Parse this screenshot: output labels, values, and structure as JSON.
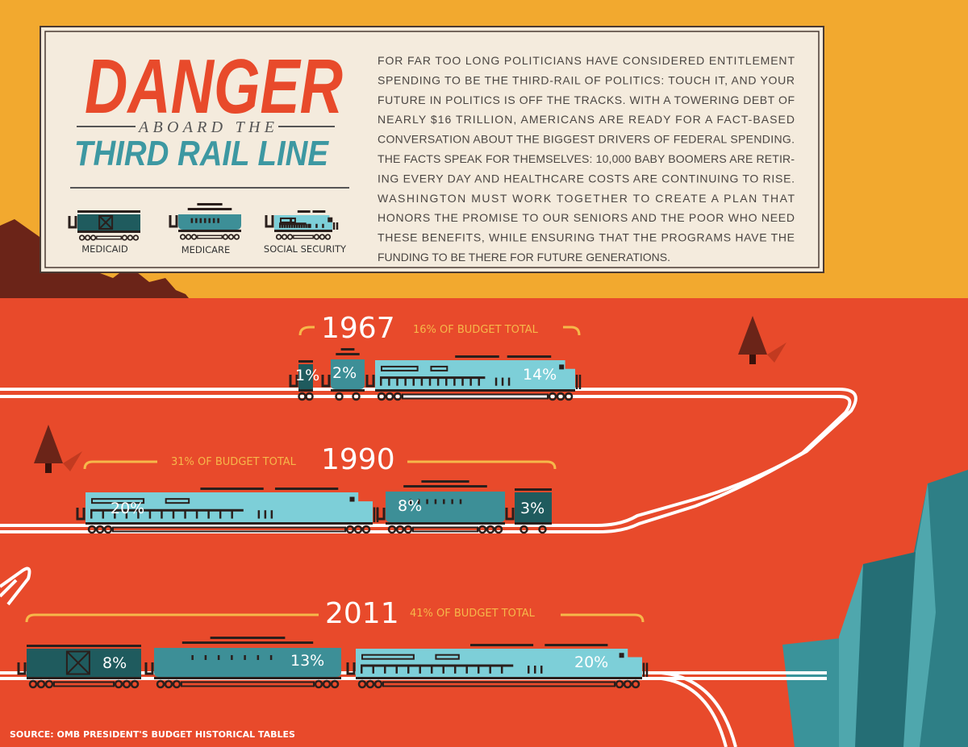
{
  "colors": {
    "sky": "#F2A92F",
    "ground": "#E84A2B",
    "panel": "#F4EBDD",
    "danger_red": "#E84A2B",
    "title_teal": "#3D98A2",
    "medicaid": "#1F5B5E",
    "medicare": "#3D8F97",
    "social_security": "#7DCFD8",
    "mountain": "#6B2418",
    "cliff": "#2E7F86"
  },
  "header": {
    "title_main": "DANGER",
    "title_sub": "ABOARD THE",
    "title_line": "THIRD RAIL LINE"
  },
  "legend": [
    {
      "label": "MEDICAID",
      "icon": "boxcar-icon"
    },
    {
      "label": "MEDICARE",
      "icon": "passenger-car-icon"
    },
    {
      "label": "SOCIAL SECURITY",
      "icon": "locomotive-icon"
    }
  ],
  "intro_lines": [
    "FOR FAR TOO LONG POLITICIANS HAVE CONSIDERED ENTITLEMENT",
    "SPENDING TO BE THE THIRD-RAIL OF POLITICS:  TOUCH IT, AND YOUR",
    "FUTURE IN POLITICS IS OFF THE TRACKS.  WITH A TOWERING DEBT OF",
    "NEARLY $16 TRILLION, AMERICANS ARE READY FOR A FACT-BASED",
    "CONVERSATION ABOUT THE BIGGEST DRIVERS OF FEDERAL SPENDING.",
    "THE FACTS SPEAK FOR THEMSELVES: 10,000 BABY BOOMERS ARE RETIR-",
    "ING EVERY DAY AND HEALTHCARE COSTS ARE CONTINUING TO RISE.",
    "WASHINGTON MUST WORK TOGETHER TO CREATE A PLAN THAT",
    "HONORS THE PROMISE TO OUR SENIORS AND THE POOR WHO NEED",
    "THESE BENEFITS, WHILE ENSURING THAT THE PROGRAMS HAVE THE",
    "FUNDING TO BE THERE FOR FUTURE GENERATIONS."
  ],
  "years": [
    {
      "year": "1967",
      "total": "16% OF BUDGET TOTAL",
      "medicaid": "1%",
      "medicare": "2%",
      "social_security": "14%"
    },
    {
      "year": "1990",
      "total": "31% OF BUDGET TOTAL",
      "medicaid": "3%",
      "medicare": "8%",
      "social_security": "20%"
    },
    {
      "year": "2011",
      "total": "41% OF BUDGET TOTAL",
      "medicaid": "8%",
      "medicare": "13%",
      "social_security": "20%"
    }
  ],
  "source": "SOURCE: OMB PRESIDENT'S BUDGET HISTORICAL TABLES"
}
